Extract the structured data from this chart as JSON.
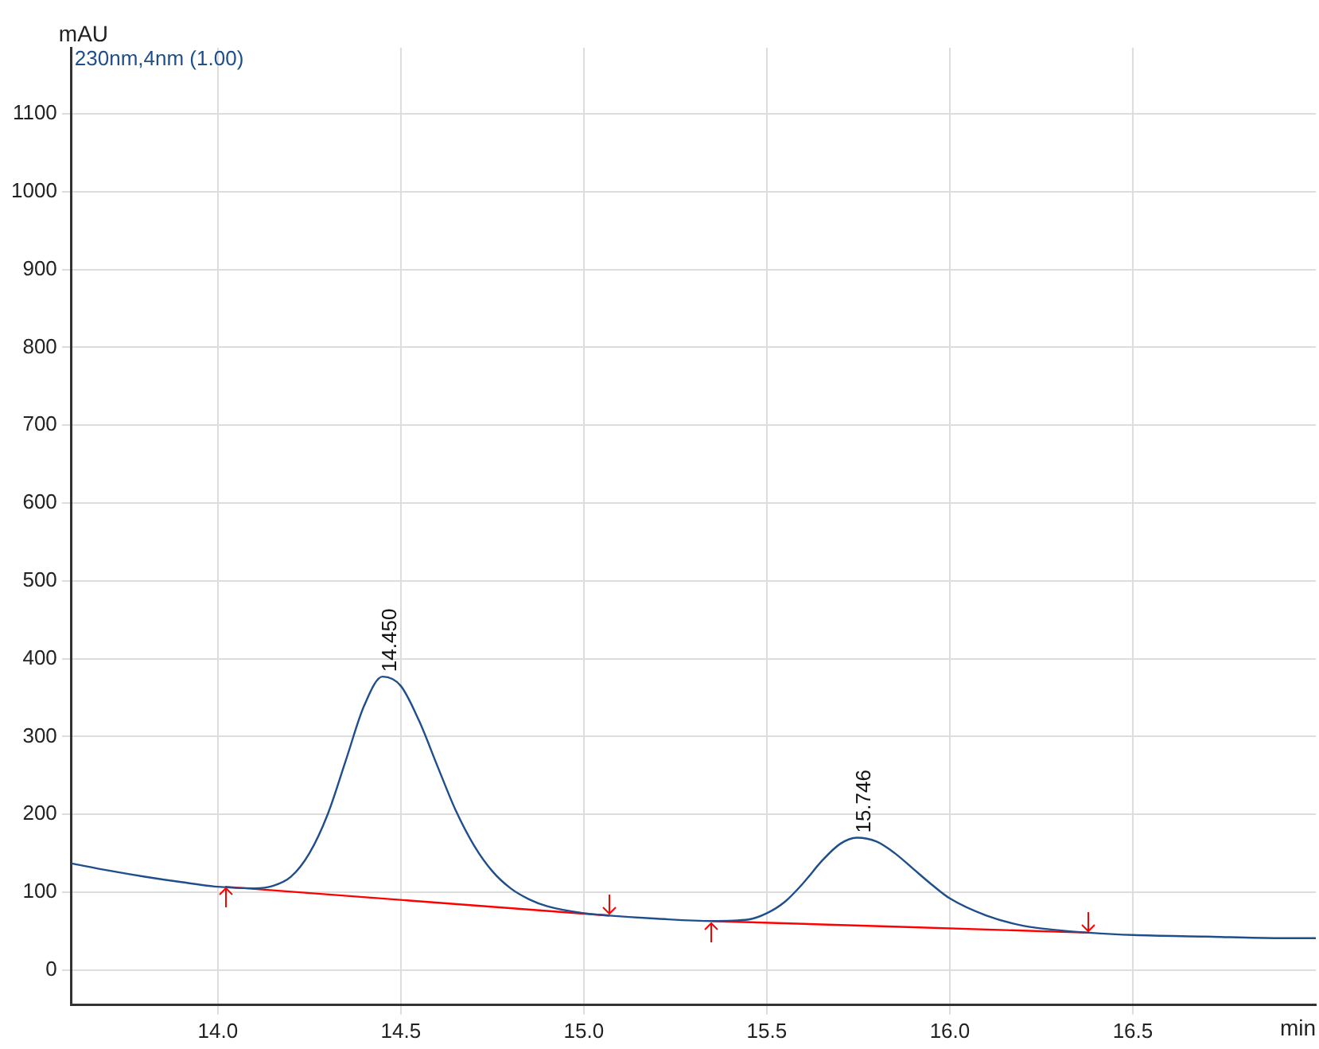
{
  "chart_data": {
    "type": "line",
    "xlabel": "min",
    "ylabel": "mAU",
    "annotations": [
      "230nm,4nm (1.00)",
      {
        "text": "14.450",
        "x": 14.45,
        "y": 377
      },
      {
        "text": "15.746",
        "x": 15.746,
        "y": 170
      }
    ],
    "series": [
      {
        "color": "#1f4e8c",
        "x": [
          13.6,
          13.7,
          13.8,
          13.9,
          14.0,
          14.1,
          14.15,
          14.2,
          14.25,
          14.3,
          14.35,
          14.4,
          14.45,
          14.5,
          14.55,
          14.6,
          14.65,
          14.7,
          14.75,
          14.8,
          14.85,
          14.9,
          15.0,
          15.07,
          15.2,
          15.35,
          15.45,
          15.5,
          15.55,
          15.6,
          15.65,
          15.7,
          15.746,
          15.8,
          15.85,
          15.9,
          15.95,
          16.0,
          16.1,
          16.2,
          16.3,
          16.38,
          16.5,
          16.7,
          16.9,
          17.0
        ],
        "values": [
          137,
          128,
          120,
          113,
          107,
          105,
          108,
          120,
          150,
          200,
          270,
          340,
          377,
          365,
          320,
          262,
          205,
          160,
          127,
          105,
          91,
          82,
          73,
          70,
          66,
          63,
          65,
          73,
          88,
          112,
          140,
          162,
          170,
          165,
          150,
          130,
          110,
          92,
          70,
          57,
          51,
          48,
          45,
          43,
          41,
          41
        ]
      },
      {
        "color": "#ff0000",
        "x": [
          14.02,
          15.07
        ],
        "values": [
          107,
          70
        ]
      },
      {
        "color": "#ff0000",
        "x": [
          15.35,
          16.38
        ],
        "values": [
          63,
          48
        ]
      }
    ],
    "xlim": [
      13.6,
      17.0
    ],
    "xticks": [
      {
        "value": 14.0,
        "label": "14.0"
      },
      {
        "value": 14.5,
        "label": "14.5"
      },
      {
        "value": 15.0,
        "label": "15.0"
      },
      {
        "value": 15.5,
        "label": "15.5"
      },
      {
        "value": 16.0,
        "label": "16.0"
      },
      {
        "value": 16.5,
        "label": "16.5"
      }
    ],
    "ylim": [
      -45,
      1185
    ],
    "yticks": [
      0,
      100,
      200,
      300,
      400,
      500,
      600,
      700,
      800,
      900,
      1000,
      1100
    ],
    "grid": true,
    "legend": false,
    "marker": "none",
    "line_style": "solid"
  }
}
